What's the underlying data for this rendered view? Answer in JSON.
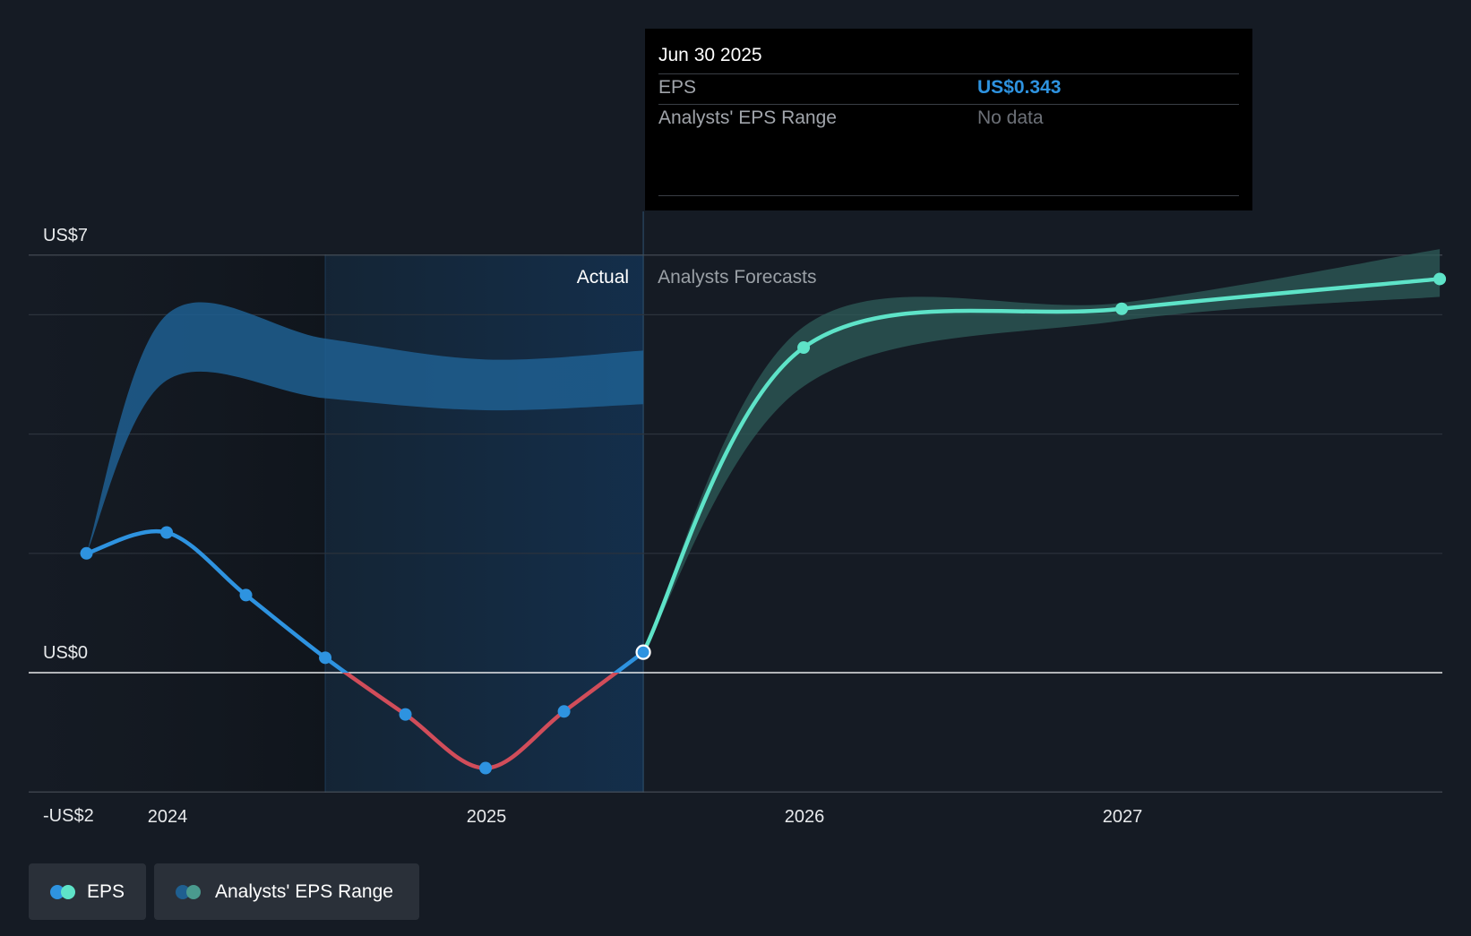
{
  "chart_data": {
    "type": "line",
    "x_ticks": [
      "2024",
      "2025",
      "2026",
      "2027"
    ],
    "y_labels": {
      "top": "US$7",
      "zero": "US$0",
      "bottom": "-US$2"
    },
    "ylim": [
      -2,
      7
    ],
    "region_labels": {
      "actual": "Actual",
      "forecast": "Analysts Forecasts"
    },
    "forecast_start": "Jun 30 2025",
    "series": [
      {
        "name": "EPS",
        "segment": "actual",
        "points": [
          {
            "x": "2023-09-30",
            "y": 2.0
          },
          {
            "x": "2023-12-31",
            "y": 2.35
          },
          {
            "x": "2024-03-31",
            "y": 1.3
          },
          {
            "x": "2024-06-30",
            "y": 0.25
          },
          {
            "x": "2024-09-30",
            "y": -0.7
          },
          {
            "x": "2024-12-31",
            "y": -1.6
          },
          {
            "x": "2025-03-31",
            "y": -0.65
          },
          {
            "x": "2025-06-30",
            "y": 0.343
          }
        ],
        "colors": {
          "positive": "#2e93e0",
          "negative": "#d14d5a"
        }
      },
      {
        "name": "EPS",
        "segment": "forecast",
        "points": [
          {
            "x": "2025-06-30",
            "y": 0.343
          },
          {
            "x": "2025-12-31",
            "y": 5.45
          },
          {
            "x": "2026-12-31",
            "y": 6.1
          },
          {
            "x": "2027-12-31",
            "y": 6.6
          }
        ],
        "color": "#5ee3c8"
      }
    ],
    "ranges": [
      {
        "name": "Analysts' EPS Range",
        "segment": "actual",
        "upper": [
          {
            "x": "2023-09-30",
            "y": 2.0
          },
          {
            "x": "2023-12-31",
            "y": 6.0
          },
          {
            "x": "2024-06-30",
            "y": 5.6
          },
          {
            "x": "2024-12-31",
            "y": 5.25
          },
          {
            "x": "2025-06-30",
            "y": 5.4
          }
        ],
        "lower": [
          {
            "x": "2023-09-30",
            "y": 2.0
          },
          {
            "x": "2023-12-31",
            "y": 4.9
          },
          {
            "x": "2024-06-30",
            "y": 4.6
          },
          {
            "x": "2024-12-31",
            "y": 4.4
          },
          {
            "x": "2025-06-30",
            "y": 4.5
          }
        ],
        "color": "#1f5f90"
      },
      {
        "name": "Analysts' EPS Range",
        "segment": "forecast",
        "upper": [
          {
            "x": "2025-06-30",
            "y": 0.343
          },
          {
            "x": "2025-12-31",
            "y": 5.8
          },
          {
            "x": "2026-12-31",
            "y": 6.2
          },
          {
            "x": "2027-12-31",
            "y": 7.1
          }
        ],
        "lower": [
          {
            "x": "2025-06-30",
            "y": 0.343
          },
          {
            "x": "2025-12-31",
            "y": 4.8
          },
          {
            "x": "2026-12-31",
            "y": 5.9
          },
          {
            "x": "2027-12-31",
            "y": 6.3
          }
        ],
        "color": "#2e5c58"
      }
    ],
    "gridlines_y": [
      7,
      6,
      4,
      2,
      -2
    ],
    "zero_line": 0
  },
  "tooltip": {
    "date": "Jun 30 2025",
    "rows": [
      {
        "label": "EPS",
        "value": "US$0.343",
        "value_color": "#2e93e0"
      },
      {
        "label": "Analysts' EPS Range",
        "value": "No data",
        "value_color": "#6d7178"
      }
    ]
  },
  "legend": [
    {
      "label": "EPS",
      "colors": [
        "#2e93e0",
        "#5ee3c8"
      ]
    },
    {
      "label": "Analysts' EPS Range",
      "colors": [
        "#1f5f90",
        "#4a9a8e"
      ]
    }
  ]
}
